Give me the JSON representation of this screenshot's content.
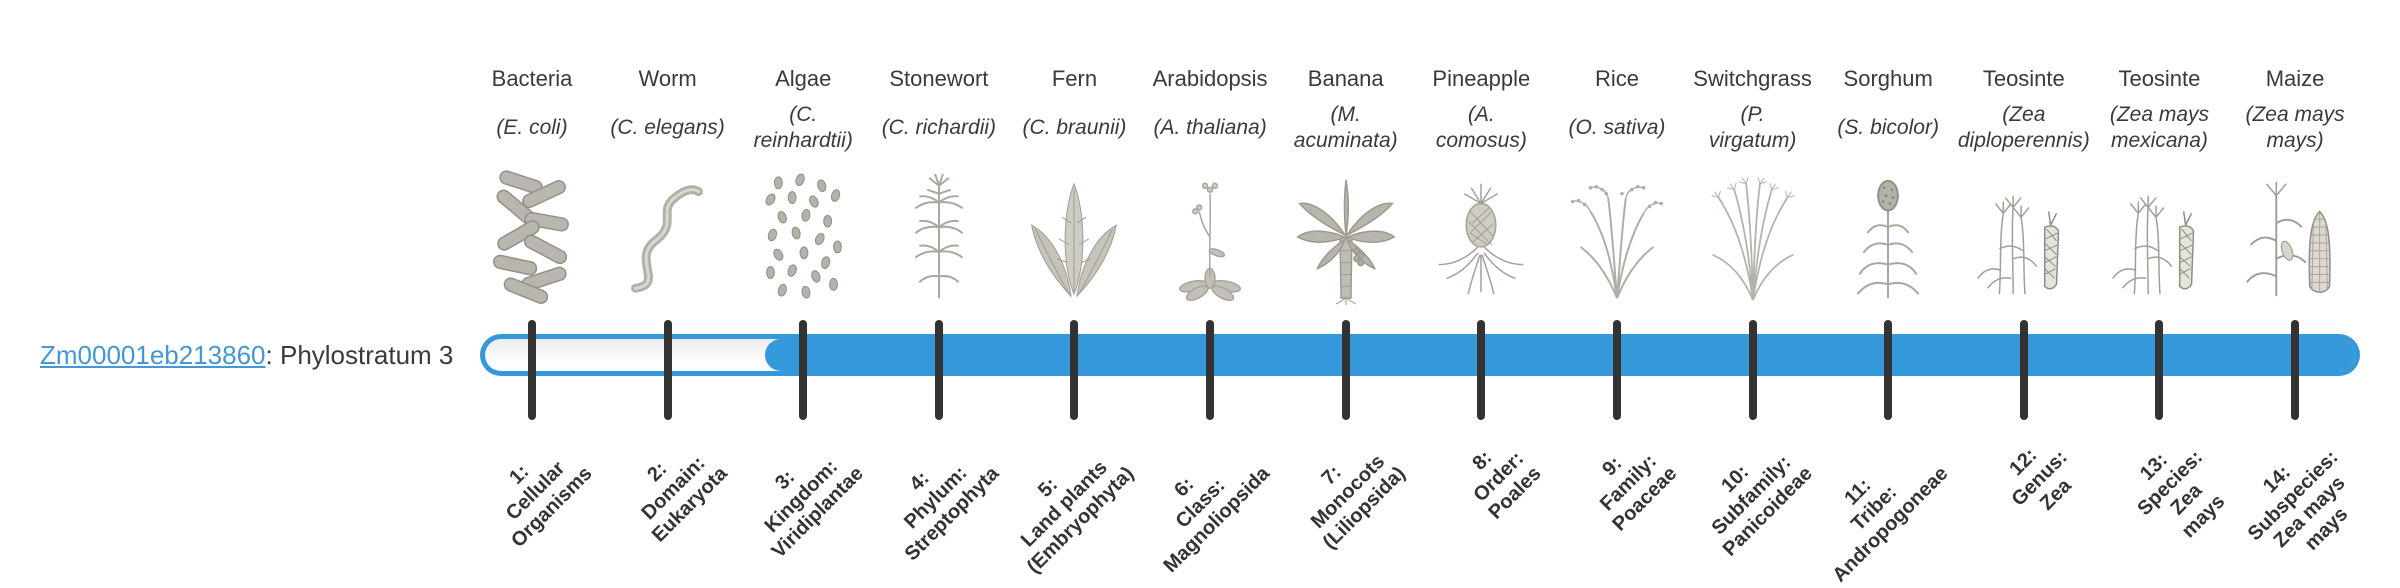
{
  "gene": {
    "id": "Zm00001eb213860",
    "annotation": ": Phylostratum 3"
  },
  "bar": {
    "fill_color": "#3498db",
    "empty_color": "#f7f7f7",
    "tick_color": "#333333",
    "link_color": "#4596d6",
    "filled_from_stratum": 3,
    "total_strata": 14
  },
  "columns": [
    {
      "common_name": "Bacteria",
      "scientific_name_lines": [
        "(E. coli)"
      ],
      "icon": "bacteria-icon",
      "stratum_label_lines": [
        "1:",
        "Cellular",
        "Organisms"
      ]
    },
    {
      "common_name": "Worm",
      "scientific_name_lines": [
        "(C. elegans)"
      ],
      "icon": "worm-icon",
      "stratum_label_lines": [
        "2:",
        "Domain:",
        "Eukaryota"
      ]
    },
    {
      "common_name": "Algae",
      "scientific_name_lines": [
        "(C.",
        "reinhardtii)"
      ],
      "icon": "algae-icon",
      "stratum_label_lines": [
        "3:",
        "Kingdom:",
        "Viridiplantae"
      ]
    },
    {
      "common_name": "Stonewort",
      "scientific_name_lines": [
        "(C. richardii)"
      ],
      "icon": "stonewort-icon",
      "stratum_label_lines": [
        "4:",
        "Phylum:",
        "Streptophyta"
      ]
    },
    {
      "common_name": "Fern",
      "scientific_name_lines": [
        "(C. braunii)"
      ],
      "icon": "fern-icon",
      "stratum_label_lines": [
        "5:",
        "Land plants",
        "(Embryophyta)"
      ]
    },
    {
      "common_name": "Arabidopsis",
      "scientific_name_lines": [
        "(A. thaliana)"
      ],
      "icon": "arabidopsis-icon",
      "stratum_label_lines": [
        "6:",
        "Class:",
        "Magnoliopsida"
      ]
    },
    {
      "common_name": "Banana",
      "scientific_name_lines": [
        "(M.",
        "acuminata)"
      ],
      "icon": "banana-icon",
      "stratum_label_lines": [
        "7:",
        "Monocots",
        "(Liliopsida)"
      ]
    },
    {
      "common_name": "Pineapple",
      "scientific_name_lines": [
        "(A.",
        "comosus)"
      ],
      "icon": "pineapple-icon",
      "stratum_label_lines": [
        "8:",
        "Order:",
        "Poales"
      ]
    },
    {
      "common_name": "Rice",
      "scientific_name_lines": [
        "(O. sativa)"
      ],
      "icon": "rice-icon",
      "stratum_label_lines": [
        "9:",
        "Family:",
        "Poaceae"
      ]
    },
    {
      "common_name": "Switchgrass",
      "scientific_name_lines": [
        "(P.",
        "virgatum)"
      ],
      "icon": "switchgrass-icon",
      "stratum_label_lines": [
        "10:",
        "Subfamily:",
        "Panicoideae"
      ]
    },
    {
      "common_name": "Sorghum",
      "scientific_name_lines": [
        "(S. bicolor)"
      ],
      "icon": "sorghum-icon",
      "stratum_label_lines": [
        "11:",
        "Tribe:",
        "Andropogoneae"
      ]
    },
    {
      "common_name": "Teosinte",
      "scientific_name_lines": [
        "(Zea",
        "diploperennis)"
      ],
      "icon": "teosinte-icon",
      "stratum_label_lines": [
        "12:",
        "Genus:",
        "Zea"
      ]
    },
    {
      "common_name": "Teosinte",
      "scientific_name_lines": [
        "(Zea mays",
        "mexicana)"
      ],
      "icon": "teosinte-icon",
      "stratum_label_lines": [
        "13:",
        "Species:",
        "Zea",
        "mays"
      ]
    },
    {
      "common_name": "Maize",
      "scientific_name_lines": [
        "(Zea mays",
        "mays)"
      ],
      "icon": "maize-icon",
      "stratum_label_lines": [
        "14:",
        "Subspecies:",
        "Zea mays",
        "mays"
      ]
    }
  ]
}
